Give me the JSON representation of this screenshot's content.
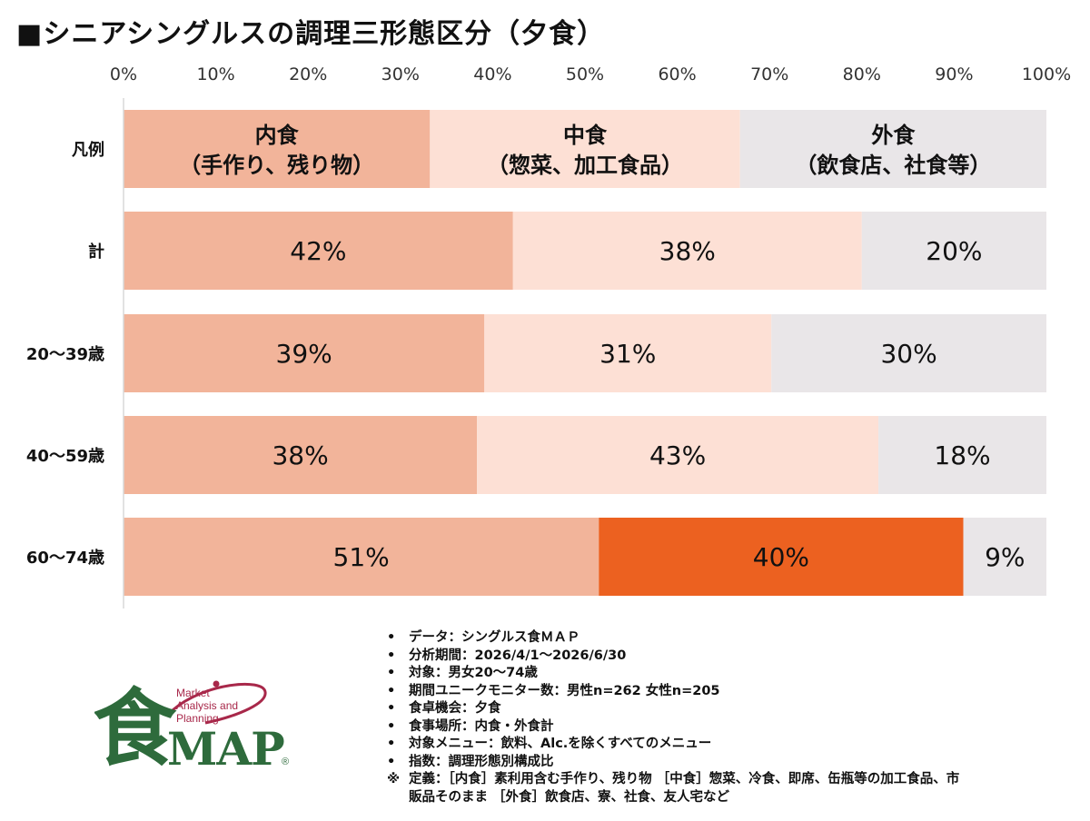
{
  "title": "■シニアシングルスの調理三形態区分（夕食）",
  "colors": {
    "naishoku": "#f2b49a",
    "nakashoku": "#fde0d5",
    "gaishoku": "#e9e6e8",
    "highlight": "#ec6120",
    "logo_green": "#2e6b3c",
    "logo_red": "#a8284a"
  },
  "chart_data": {
    "type": "bar",
    "orientation": "horizontal",
    "stacked": true,
    "x_ticks": [
      "0%",
      "10%",
      "20%",
      "30%",
      "40%",
      "50%",
      "60%",
      "70%",
      "80%",
      "90%",
      "100%"
    ],
    "xlim": [
      0,
      100
    ],
    "legend": {
      "label": "凡例",
      "entries": [
        {
          "title": "内食",
          "sub": "（手作り、残り物）",
          "width": 33.2
        },
        {
          "title": "中食",
          "sub": "（惣菜、加工食品）",
          "width": 33.6
        },
        {
          "title": "外食",
          "sub": "（飲食店、社食等）",
          "width": 33.2
        }
      ]
    },
    "categories": [
      "計",
      "20～39歳",
      "40～59歳",
      "60～74歳"
    ],
    "series": [
      {
        "name": "内食",
        "values": [
          42.2,
          39.1,
          38.3,
          51.5
        ]
      },
      {
        "name": "中食",
        "values": [
          37.8,
          31.1,
          43.5,
          39.5
        ]
      },
      {
        "name": "外食",
        "values": [
          20.0,
          29.8,
          18.2,
          9.0
        ]
      }
    ],
    "labels": [
      [
        "42%",
        "38%",
        "20%"
      ],
      [
        "39%",
        "31%",
        "30%"
      ],
      [
        "38%",
        "43%",
        "18%"
      ],
      [
        "51%",
        "40%",
        "9%"
      ]
    ],
    "highlight": {
      "row": 3,
      "series": 1
    }
  },
  "notes": [
    "データ：シングルス食ＭＡＰ",
    "分析期間：2026/4/1～2026/6/30",
    "対象：男女20～74歳",
    "期間ユニークモニター数：男性n=262 女性n=205",
    "食卓機会：夕食",
    "食事場所：内食・外食計",
    "対象メニュー：飲料、Alc.を除くすべてのメニュー",
    "指数：調理形態別構成比"
  ],
  "definition": {
    "mark": "※",
    "line1": "定義：［内食］素利用含む手作り、残り物 ［中食］惣菜、冷食、即席、缶瓶等の加工食品、市",
    "line2": "販品そのまま ［外食］飲食店、寮、社食、友人宅など"
  },
  "bullet": "•",
  "logo": {
    "kanji": "食",
    "map": "MAP",
    "reg": "®",
    "line1": "Market",
    "line2": "Analysis and",
    "line3": "Planning"
  }
}
